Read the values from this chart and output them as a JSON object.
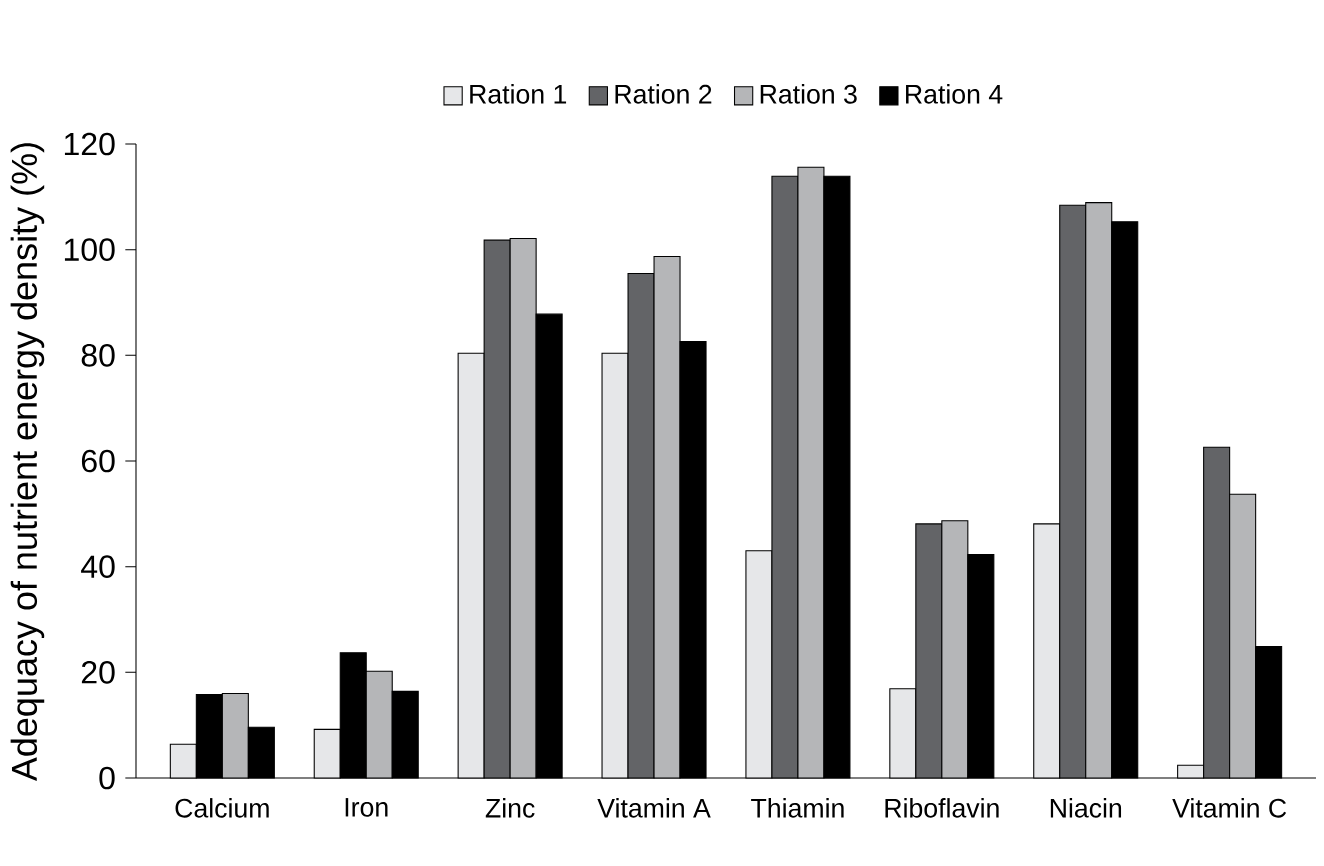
{
  "chart_data": {
    "type": "bar",
    "ylabel": "Adequacy of nutrient energy density (%)",
    "categories": [
      "Calcium",
      "Iron",
      "Zinc",
      "Vitamin A",
      "Thiamin",
      "Riboflavin",
      "Niacin",
      "Vitamin C"
    ],
    "series": [
      {
        "name": "Ration 1",
        "color": "#e6e7e9",
        "values": [
          6.4,
          9.2,
          80.4,
          80.4,
          43.0,
          16.9,
          48.1,
          2.4
        ]
      },
      {
        "name": "Ration 2",
        "color": "#636467",
        "colors": [
          "#000000",
          "#000000",
          "#636467",
          "#636467",
          "#636467",
          "#636467",
          "#636467",
          "#636467"
        ],
        "values": [
          15.8,
          23.7,
          101.8,
          95.5,
          113.9,
          48.1,
          108.4,
          62.6
        ]
      },
      {
        "name": "Ration 3",
        "color": "#b5b6b8",
        "values": [
          16.0,
          20.2,
          102.1,
          98.7,
          115.6,
          48.7,
          108.9,
          53.7
        ]
      },
      {
        "name": "Ration 4",
        "color": "#000000",
        "values": [
          9.6,
          16.4,
          87.8,
          82.6,
          113.9,
          42.3,
          105.3,
          24.9
        ]
      }
    ],
    "ylim": [
      0,
      120
    ],
    "yticks": [
      0,
      20,
      40,
      60,
      80,
      100,
      120
    ],
    "grid": false,
    "legend": "top"
  }
}
